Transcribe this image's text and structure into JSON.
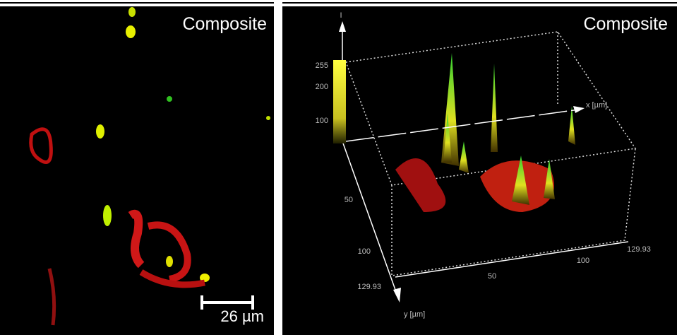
{
  "left_panel": {
    "label": "Composite",
    "scale_bar": "26 µm"
  },
  "right_panel": {
    "label": "Composite",
    "intensity_axis": {
      "title": "I",
      "ticks": [
        "255",
        "200",
        "100"
      ]
    },
    "x_axis": {
      "title": "x [µm]",
      "ticks": [
        "50",
        "100",
        "129.93"
      ]
    },
    "y_axis": {
      "title": "y [µm]",
      "ticks": [
        "50",
        "100",
        "129.93"
      ]
    }
  }
}
